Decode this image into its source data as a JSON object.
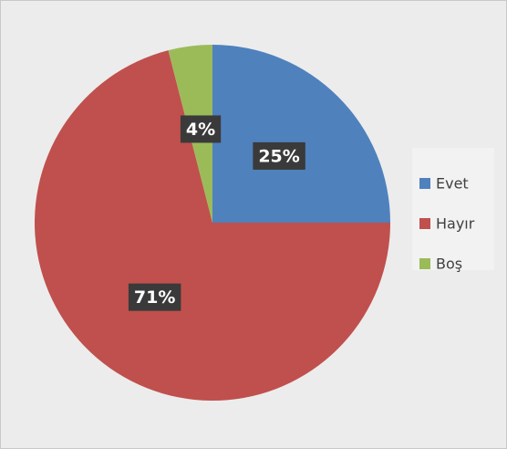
{
  "chart_data": {
    "type": "pie",
    "categories": [
      "Evet",
      "Hayır",
      "Boş"
    ],
    "values": [
      25,
      71,
      4
    ],
    "value_labels": [
      "25%",
      "71%",
      "4%"
    ],
    "colors": [
      "#4f81bd",
      "#c0504d",
      "#9bbb59"
    ],
    "legend": "right"
  }
}
